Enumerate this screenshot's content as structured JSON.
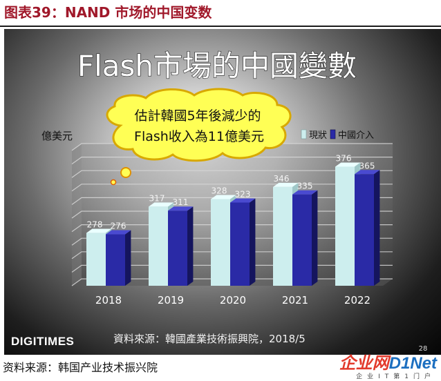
{
  "figure": {
    "title": "图表39：NAND 市场的中国变数",
    "source": "资料来源：韩国产业技术振兴院"
  },
  "logo": {
    "text_cn": "企业网",
    "text_en": "D1Net",
    "subtitle": "企业IT第1门户"
  },
  "slide": {
    "brand": "DIGITIMES",
    "page_number": "28",
    "source": "資料來源：韓國產業技術振興院，2018/5",
    "callout": [
      "估計韓國5年後減少的",
      "Flash收入為11億美元"
    ]
  },
  "chart_data": {
    "type": "bar",
    "title": "Flash市場的中國變數",
    "ylabel": "億美元",
    "categories": [
      "2018",
      "2019",
      "2020",
      "2021",
      "2022"
    ],
    "series": [
      {
        "name": "現狀",
        "values": [
          278,
          317,
          328,
          346,
          376
        ],
        "color": "#cdeeee"
      },
      {
        "name": "中國介入",
        "values": [
          276,
          311,
          323,
          335,
          365
        ],
        "color": "#2a2aa6"
      }
    ],
    "ylim": [
      200,
      400
    ],
    "grid": true,
    "legend_position": "top-right"
  }
}
